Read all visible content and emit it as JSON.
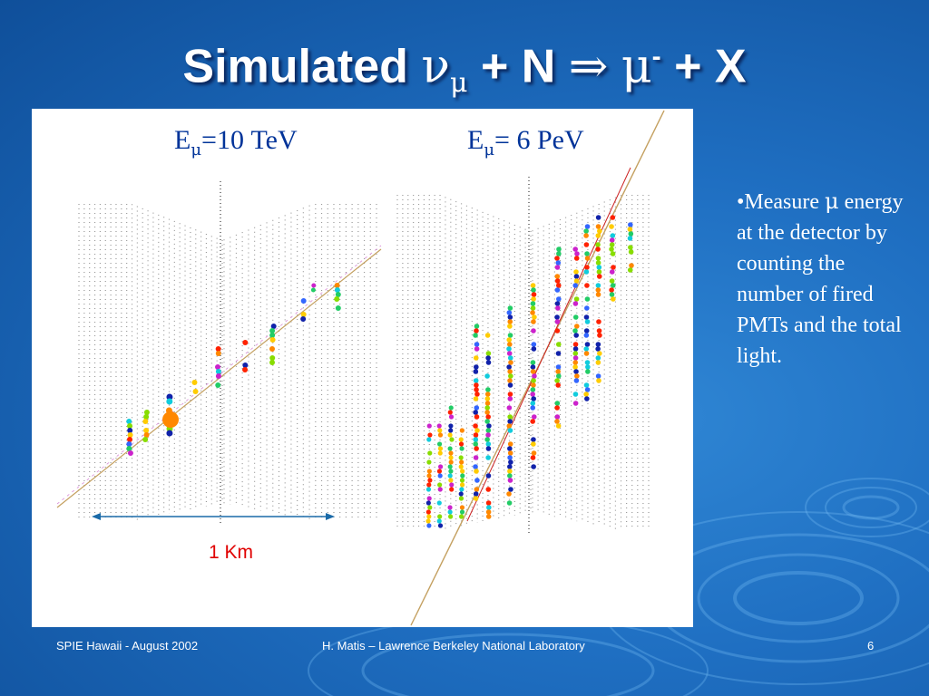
{
  "title": {
    "text": "Simulated",
    "nu": "ν",
    "nu_sub": "μ",
    "plus_n": "+ N",
    "arrow": "⇒",
    "mu": "μ",
    "mu_sup": "-",
    "plus_x": "+ X"
  },
  "figure": {
    "left_label": {
      "prefix": "E",
      "sub": "μ",
      "suffix": "=10 TeV"
    },
    "right_label": {
      "prefix": "E",
      "sub": "μ",
      "suffix": "= 6 PeV"
    },
    "scale_label": "1 Km",
    "hit_colors": [
      "#ff2200",
      "#ff8800",
      "#ffcc00",
      "#88dd00",
      "#22cc66",
      "#11ccdd",
      "#3366ff",
      "#1122aa",
      "#cc22cc"
    ]
  },
  "bullet": {
    "marker": "•",
    "text_before": "Measure ",
    "mu": "μ",
    "text_after": " energy at the detector by counting the number of fired PMTs and the total light."
  },
  "footer": {
    "left": "SPIE Hawaii - August 2002",
    "center": "H. Matis – Lawrence Berkeley National Laboratory",
    "page": "6"
  }
}
